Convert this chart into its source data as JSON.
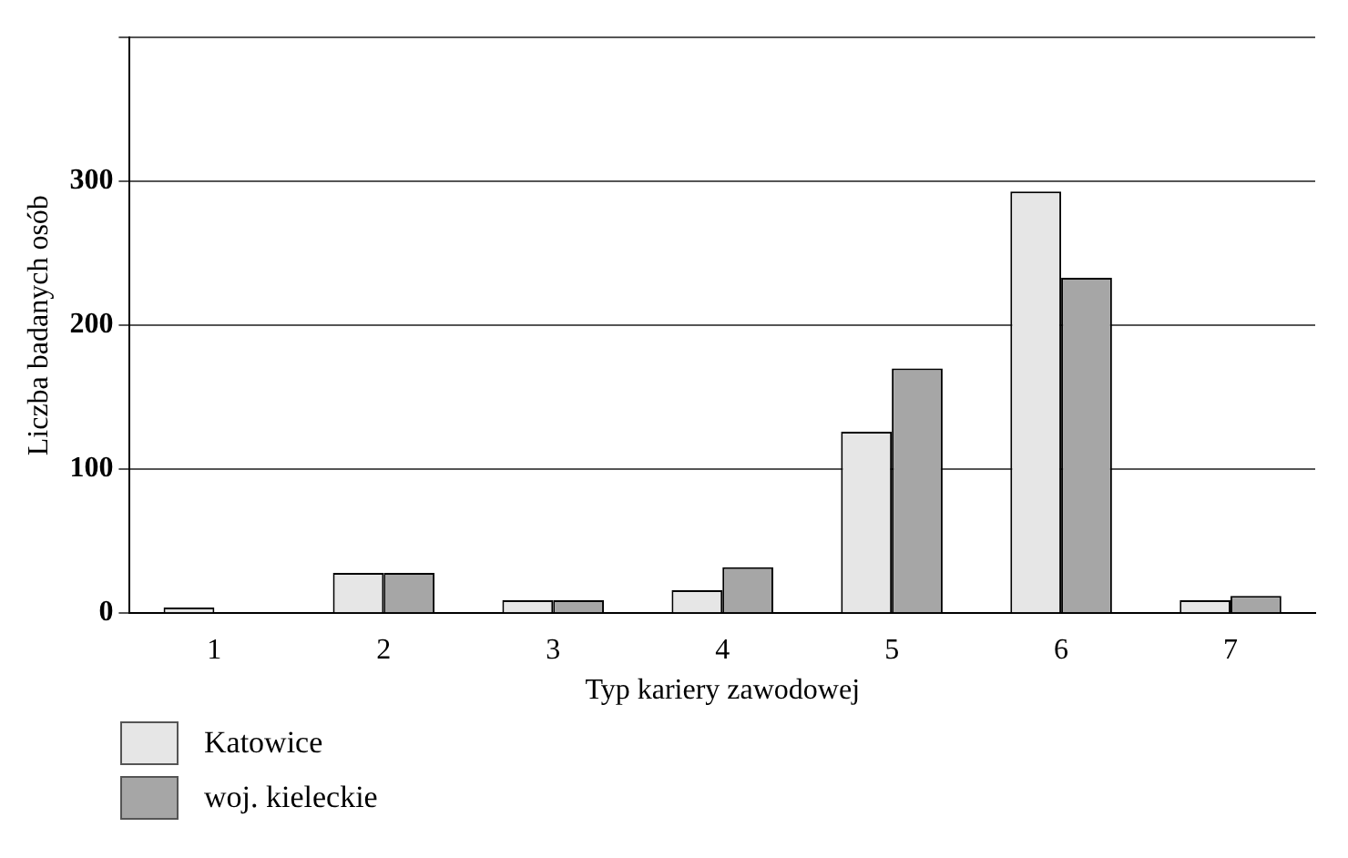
{
  "chart_data": {
    "type": "bar",
    "xlabel": "Typ kariery zawodowej",
    "ylabel": "Liczba badanych osób",
    "categories": [
      "1",
      "2",
      "3",
      "4",
      "5",
      "6",
      "7"
    ],
    "series": [
      {
        "name": "Katowice",
        "color": "#e6e6e6",
        "values": [
          4,
          28,
          9,
          16,
          126,
          293,
          9
        ]
      },
      {
        "name": "woj. kieleckie",
        "color": "#a6a6a6",
        "values": [
          0,
          28,
          9,
          32,
          170,
          233,
          12
        ]
      }
    ],
    "ylim": [
      0,
      400
    ],
    "yticks": [
      0,
      100,
      200,
      300,
      {
        "value": 400,
        "label": null
      }
    ],
    "grid": "y",
    "legend": "bottom left"
  }
}
